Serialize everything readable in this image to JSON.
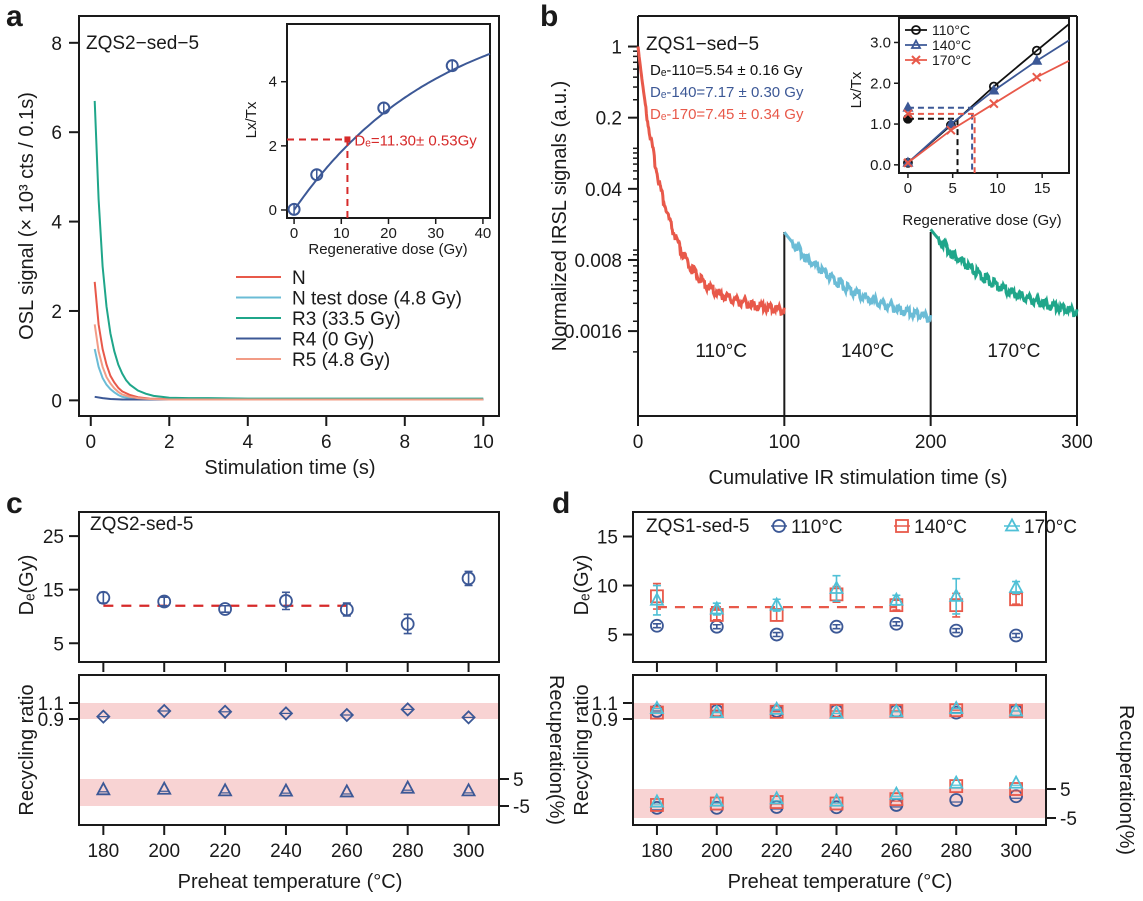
{
  "colors": {
    "axis": "#1a1a1a",
    "red": "#e8594a",
    "red_dark": "#d62a2a",
    "light_blue": "#6bbcd6",
    "teal": "#1fa68a",
    "navy": "#3c5896",
    "salmon": "#f29c86",
    "cyan": "#4fc0d6",
    "band": "#f8d3d3",
    "black": "#111111"
  },
  "chart_data": [
    {
      "panel": "a",
      "type": "line",
      "annotation": "ZQS2−sed−5",
      "xlabel": "Stimulation time (s)",
      "ylabel": "OSL signal (× 10³ cts / 0.1s)",
      "xlim": [
        -0.3,
        10.4
      ],
      "ylim": [
        -0.35,
        8.6
      ],
      "xticks": [
        0,
        2,
        4,
        6,
        8,
        10
      ],
      "yticks": [
        0,
        2,
        4,
        6,
        8
      ],
      "legend_position": "center-right",
      "series": [
        {
          "name": "N",
          "color": "#e8594a",
          "x": [
            0.1,
            0.2,
            0.3,
            0.4,
            0.5,
            0.6,
            0.7,
            0.8,
            1.0,
            1.2,
            1.5,
            2,
            3,
            4,
            5,
            6,
            7,
            8,
            9,
            10
          ],
          "y": [
            2.65,
            1.7,
            1.15,
            0.8,
            0.55,
            0.4,
            0.28,
            0.2,
            0.12,
            0.07,
            0.04,
            0.03,
            0.02,
            0.02,
            0.02,
            0.02,
            0.02,
            0.02,
            0.02,
            0.02
          ]
        },
        {
          "name": "N test dose (4.8 Gy)",
          "color": "#6bbcd6",
          "x": [
            0.1,
            0.2,
            0.3,
            0.4,
            0.5,
            0.6,
            0.7,
            0.8,
            1.0,
            1.2,
            1.5,
            2,
            3,
            4,
            5,
            6,
            7,
            8,
            9,
            10
          ],
          "y": [
            1.15,
            0.75,
            0.5,
            0.35,
            0.25,
            0.18,
            0.12,
            0.08,
            0.05,
            0.03,
            0.02,
            0.02,
            0.02,
            0.02,
            0.02,
            0.02,
            0.02,
            0.02,
            0.02,
            0.02
          ]
        },
        {
          "name": "R3 (33.5 Gy)",
          "color": "#1fa68a",
          "x": [
            0.1,
            0.2,
            0.3,
            0.4,
            0.5,
            0.6,
            0.7,
            0.8,
            0.9,
            1.0,
            1.2,
            1.4,
            1.6,
            1.8,
            2,
            2.5,
            3,
            4,
            5,
            6,
            7,
            8,
            9,
            10
          ],
          "y": [
            6.7,
            4.5,
            3.0,
            2.1,
            1.5,
            1.1,
            0.8,
            0.6,
            0.45,
            0.35,
            0.22,
            0.15,
            0.1,
            0.08,
            0.06,
            0.05,
            0.05,
            0.04,
            0.04,
            0.04,
            0.04,
            0.04,
            0.04,
            0.04
          ]
        },
        {
          "name": "R4 (0 Gy)",
          "color": "#3c5896",
          "x": [
            0.1,
            0.3,
            0.5,
            0.8,
            1.2,
            2,
            4,
            6,
            8,
            10
          ],
          "y": [
            0.08,
            0.05,
            0.03,
            0.02,
            0.02,
            0.02,
            0.02,
            0.02,
            0.02,
            0.02
          ]
        },
        {
          "name": "R5 (4.8 Gy)",
          "color": "#f29c86",
          "x": [
            0.1,
            0.2,
            0.3,
            0.4,
            0.5,
            0.6,
            0.7,
            0.8,
            1.0,
            1.2,
            1.5,
            2,
            3,
            4,
            5,
            6,
            7,
            8,
            9,
            10
          ],
          "y": [
            1.7,
            1.1,
            0.75,
            0.52,
            0.38,
            0.27,
            0.19,
            0.13,
            0.08,
            0.05,
            0.03,
            0.02,
            0.02,
            0.02,
            0.02,
            0.02,
            0.02,
            0.02,
            0.02,
            0.02
          ]
        }
      ],
      "inset": {
        "type": "scatter+fit",
        "xlabel": "Regenerative dose (Gy)",
        "ylabel": "Lx/Tx",
        "xlim": [
          -1.5,
          41.5
        ],
        "ylim": [
          -0.25,
          5.8
        ],
        "xticks": [
          0,
          10,
          20,
          30,
          40
        ],
        "yticks": [
          0,
          2,
          4
        ],
        "points": {
          "x": [
            0,
            4.8,
            19,
            33.5
          ],
          "y": [
            0.02,
            1.1,
            3.18,
            4.5
          ]
        },
        "fit": {
          "model": "saturating exponential",
          "A": 6.6,
          "D0": 31
        },
        "de_marker": {
          "x": 11.3,
          "y": 2.2,
          "label": "Dₑ=11.30± 0.53Gy"
        }
      }
    },
    {
      "panel": "b",
      "type": "line",
      "scale_y": "log",
      "annotation": "ZQS1−sed−5",
      "xlabel": "Cumulative IR stimulation time (s)",
      "ylabel": "Normalized IRSL signals (a.u.)",
      "xlim": [
        0,
        300
      ],
      "ylim_log10": [
        -3.63,
        0.3
      ],
      "xticks": [
        0,
        100,
        200,
        300
      ],
      "yticks": [
        1,
        0.2,
        0.04,
        0.008,
        0.0016
      ],
      "ytick_labels": [
        "1",
        "0.2",
        "0.04",
        "0.008",
        "0.0016"
      ],
      "segment_labels": [
        "110°C",
        "140°C",
        "170°C"
      ],
      "de_labels": [
        {
          "text": "Dₑ-110=5.54 ± 0.16 Gy",
          "color": "#111111"
        },
        {
          "text": "Dₑ-140=7.17 ± 0.30 Gy",
          "color": "#3c5896"
        },
        {
          "text": "Dₑ-170=7.45 ± 0.34 Gy",
          "color": "#e8594a"
        }
      ],
      "series": [
        {
          "name": "110°C",
          "color": "#e8594a",
          "t_start": 0,
          "t_end": 100,
          "y_start": 1.0,
          "y_end": 0.0026
        },
        {
          "name": "140°C",
          "color": "#6bbcd6",
          "t_start": 100,
          "t_end": 200,
          "y_start": 0.015,
          "y_end": 0.0022
        },
        {
          "name": "170°C",
          "color": "#1fa68a",
          "t_start": 200,
          "t_end": 300,
          "y_start": 0.016,
          "y_end": 0.0025
        }
      ],
      "inset": {
        "type": "scatter+line",
        "xlabel": "Regenerative dose (Gy)",
        "ylabel": "Lx/Tx",
        "xlim": [
          -1,
          18
        ],
        "ylim": [
          -0.2,
          3.6
        ],
        "xticks": [
          0,
          5,
          10,
          15
        ],
        "yticks": [
          0.0,
          1.0,
          2.0,
          3.0
        ],
        "ytick_labels": [
          "0.0",
          "1.0",
          "2.0",
          "3.0"
        ],
        "legend_position": "top-left",
        "series": [
          {
            "name": "110°C",
            "color": "#111111",
            "marker": "circle",
            "x": [
              0,
              4.8,
              9.6,
              14.4,
              18
            ],
            "y": [
              0.05,
              0.97,
              1.92,
              2.8,
              3.45
            ],
            "natural": {
              "y": 1.13,
              "de": 5.54
            }
          },
          {
            "name": "140°C",
            "color": "#3c5896",
            "marker": "triangle",
            "x": [
              0,
              4.8,
              9.6,
              14.4,
              18
            ],
            "y": [
              0.05,
              1.0,
              1.82,
              2.55,
              3.05
            ],
            "natural": {
              "y": 1.4,
              "de": 7.17
            }
          },
          {
            "name": "170°C",
            "color": "#e8594a",
            "marker": "x",
            "x": [
              0,
              4.8,
              9.6,
              14.4,
              18
            ],
            "y": [
              0.05,
              0.85,
              1.5,
              2.15,
              2.55
            ],
            "natural": {
              "y": 1.25,
              "de": 7.45
            }
          }
        ]
      }
    },
    {
      "panel": "c",
      "type": "scatter",
      "annotation": "ZQS2-sed-5",
      "xlabel": "Preheat temperature (°C)",
      "categories": [
        180,
        200,
        220,
        240,
        260,
        280,
        300
      ],
      "top": {
        "ylabel": "Dₑ(Gy)",
        "ylim": [
          1.5,
          29.5
        ],
        "yticks": [
          5,
          15,
          25
        ],
        "series": [
          {
            "name": "De",
            "color": "#3c5896",
            "marker": "circle",
            "y": [
              13.5,
              12.8,
              11.4,
              12.9,
              11.3,
              8.6,
              17.1
            ],
            "err": [
              1.0,
              0.8,
              0.6,
              1.6,
              1.2,
              1.8,
              1.3
            ]
          }
        ],
        "mean_line": {
          "value": 12.0,
          "from": 180,
          "to": 260,
          "color": "#d62a2a"
        }
      },
      "bottom": {
        "ylabel_left": "Recycling ratio",
        "ylabel_right": "Recuperation(%)",
        "left_yticks": [
          "1.1",
          "0.9"
        ],
        "right_yticks": [
          "5",
          "-5"
        ],
        "bands": [
          "recycling 0.9–1.1",
          "recuperation -5–5%"
        ],
        "recycling": {
          "marker": "diamond",
          "color": "#3c5896",
          "y": [
            0.93,
            1.0,
            0.99,
            0.97,
            0.95,
            1.02,
            0.92
          ]
        },
        "recuperation_pct": {
          "marker": "triangle",
          "color": "#3c5896",
          "y": [
            1.0,
            1.2,
            0.6,
            0.5,
            0.2,
            1.6,
            0.6
          ]
        }
      }
    },
    {
      "panel": "d",
      "type": "scatter",
      "annotation": "ZQS1-sed-5",
      "xlabel": "Preheat temperature (°C)",
      "categories": [
        180,
        200,
        220,
        240,
        260,
        280,
        300
      ],
      "legend_position": "top",
      "top": {
        "ylabel": "Dₑ(Gy)",
        "ylim": [
          2.2,
          17.5
        ],
        "yticks": [
          5,
          10,
          15
        ],
        "series": [
          {
            "name": "110°C",
            "color": "#3c5896",
            "marker": "circle",
            "y": [
              5.9,
              5.8,
              5.0,
              5.8,
              6.1,
              5.4,
              4.9
            ],
            "err": [
              0.2,
              0.2,
              0.2,
              0.2,
              0.2,
              0.2,
              0.2
            ]
          },
          {
            "name": "140°C",
            "color": "#e8594a",
            "marker": "square",
            "y": [
              8.9,
              7.0,
              7.0,
              9.1,
              8.0,
              8.0,
              8.6
            ],
            "err": [
              1.3,
              0.5,
              0.6,
              0.8,
              0.5,
              1.2,
              0.5
            ]
          },
          {
            "name": "170°C",
            "color": "#4fc0d6",
            "marker": "triangle",
            "y": [
              8.5,
              7.6,
              8.0,
              9.7,
              8.5,
              8.9,
              9.8
            ],
            "err": [
              1.5,
              0.6,
              0.6,
              1.3,
              0.5,
              1.8,
              0.6
            ]
          }
        ],
        "mean_line": {
          "value": 7.8,
          "from": 180,
          "to": 260,
          "color": "#e8594a"
        }
      },
      "bottom": {
        "ylabel_left": "Recycling ratio",
        "ylabel_right": "Recuperation(%)",
        "left_yticks": [
          "1.1",
          "0.9"
        ],
        "right_yticks": [
          "5",
          "-5"
        ],
        "recycling": [
          {
            "name": "110°C",
            "marker": "circle",
            "color": "#3c5896",
            "y": [
              1.0,
              1.0,
              1.0,
              1.0,
              1.0,
              0.98,
              1.0
            ]
          },
          {
            "name": "140°C",
            "marker": "square",
            "color": "#e8594a",
            "y": [
              0.98,
              1.01,
              0.99,
              1.0,
              1.0,
              1.01,
              1.0
            ]
          },
          {
            "name": "170°C",
            "marker": "triangle",
            "color": "#4fc0d6",
            "y": [
              1.03,
              0.98,
              1.02,
              0.97,
              0.99,
              1.03,
              1.0
            ]
          }
        ],
        "recuperation_pct": [
          {
            "name": "110°C",
            "marker": "circle",
            "color": "#3c5896",
            "y": [
              -1.5,
              -1.5,
              -1.2,
              -1.3,
              -0.5,
              1.2,
              2.5
            ]
          },
          {
            "name": "140°C",
            "marker": "square",
            "color": "#e8594a",
            "y": [
              -0.5,
              0.0,
              0.5,
              0.0,
              1.5,
              6.0,
              5.0
            ]
          },
          {
            "name": "170°C",
            "marker": "triangle",
            "color": "#4fc0d6",
            "y": [
              0.5,
              0.8,
              1.6,
              0.8,
              3.2,
              7.0,
              7.0
            ]
          }
        ]
      }
    }
  ],
  "labels": {
    "panel_a": "a",
    "panel_b": "b",
    "panel_c": "c",
    "panel_d": "d",
    "a_annotation": "ZQS2−sed−5",
    "a_xlabel": "Stimulation time (s)",
    "a_ylabel": "OSL signal (× 10³ cts / 0.1s)",
    "a_inset_xlabel": "Regenerative dose (Gy)",
    "a_inset_ylabel": "Lx/Tx",
    "a_inset_de": "Dₑ=11.30± 0.53Gy",
    "b_annotation": "ZQS1−sed−5",
    "b_xlabel": "Cumulative IR stimulation time (s)",
    "b_ylabel": "Normalized IRSL signals (a.u.)",
    "b_inset_xlabel": "Regenerative dose (Gy)",
    "b_inset_ylabel": "Lx/Tx",
    "c_annotation": "ZQS2-sed-5",
    "d_annotation": "ZQS1-sed-5",
    "cd_xlabel": "Preheat temperature (°C)",
    "de_gy": "Dₑ(Gy)",
    "recycling": "Recycling ratio",
    "recuperation": "Recuperation(%)"
  }
}
